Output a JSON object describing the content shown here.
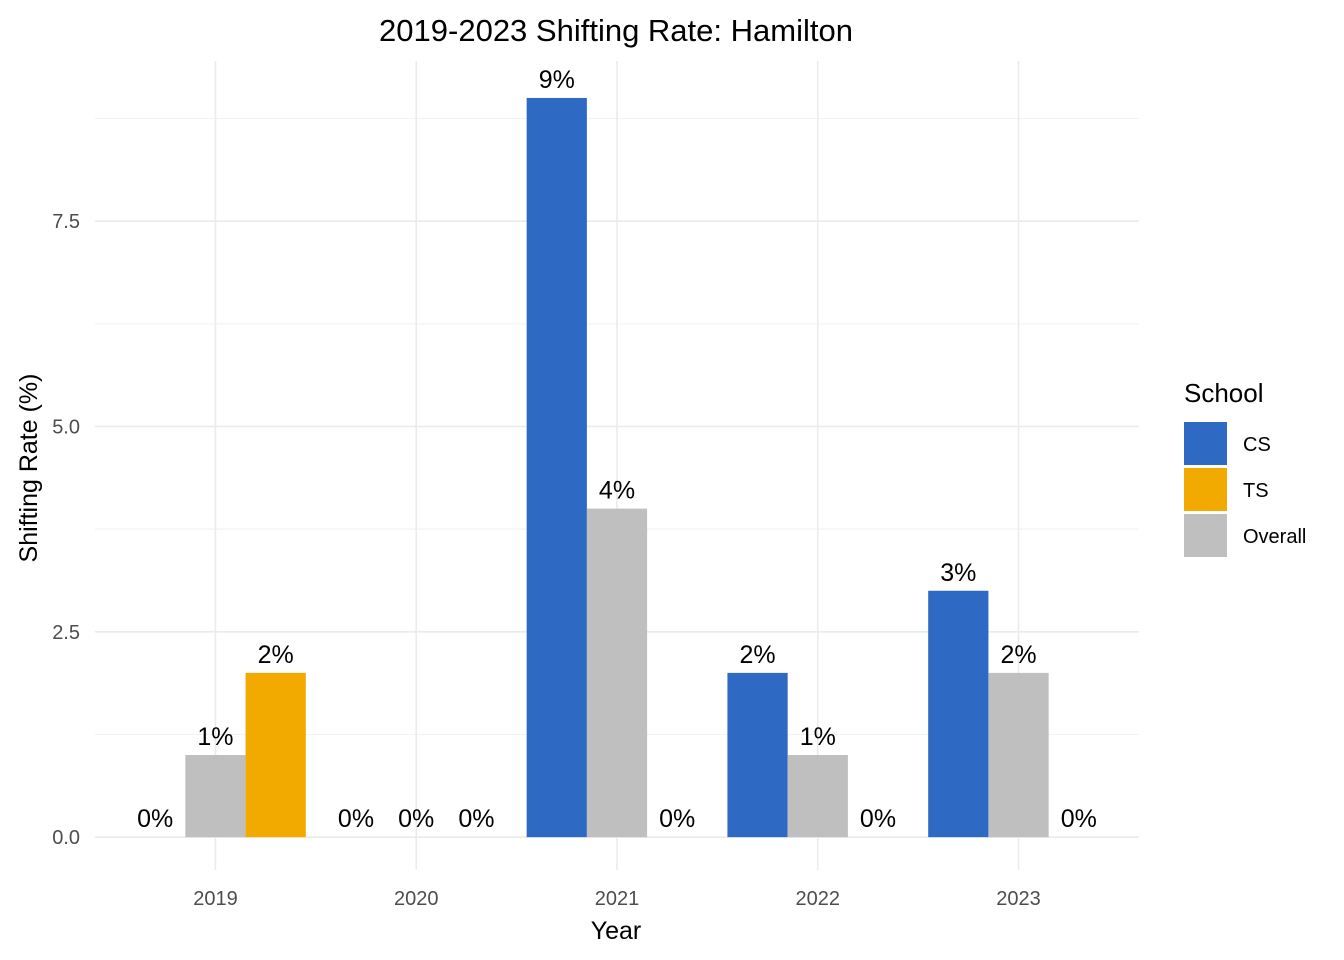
{
  "chart_data": {
    "type": "bar",
    "title": "2019-2023 Shifting Rate: Hamilton",
    "xlabel": "Year",
    "ylabel": "Shifting Rate (%)",
    "categories": [
      "2019",
      "2020",
      "2021",
      "2022",
      "2023"
    ],
    "series": [
      {
        "name": "CS",
        "color": "#2e69c4",
        "values": [
          0,
          0,
          9,
          2,
          3
        ],
        "labels": [
          "0%",
          "0%",
          "9%",
          "2%",
          "3%"
        ]
      },
      {
        "name": "Overall",
        "color": "#bfbfbf",
        "values": [
          1,
          0,
          4,
          1,
          2
        ],
        "labels": [
          "1%",
          "0%",
          "4%",
          "1%",
          "2%"
        ]
      },
      {
        "name": "TS",
        "color": "#f2a900",
        "values": [
          2,
          0,
          0,
          0,
          0
        ],
        "labels": [
          "2%",
          "0%",
          "0%",
          "0%",
          "0%"
        ]
      }
    ],
    "ylim": [
      -0.4,
      9.45
    ],
    "yticks": [
      0,
      2.5,
      5,
      7.5
    ],
    "ytick_labels": [
      "0.0",
      "2.5",
      "5.0",
      "7.5"
    ],
    "grid": true,
    "legend": {
      "title": "School",
      "position": "right",
      "entries": [
        {
          "name": "CS",
          "color": "#2e69c4"
        },
        {
          "name": "TS",
          "color": "#f2a900"
        },
        {
          "name": "Overall",
          "color": "#bfbfbf"
        }
      ]
    }
  }
}
